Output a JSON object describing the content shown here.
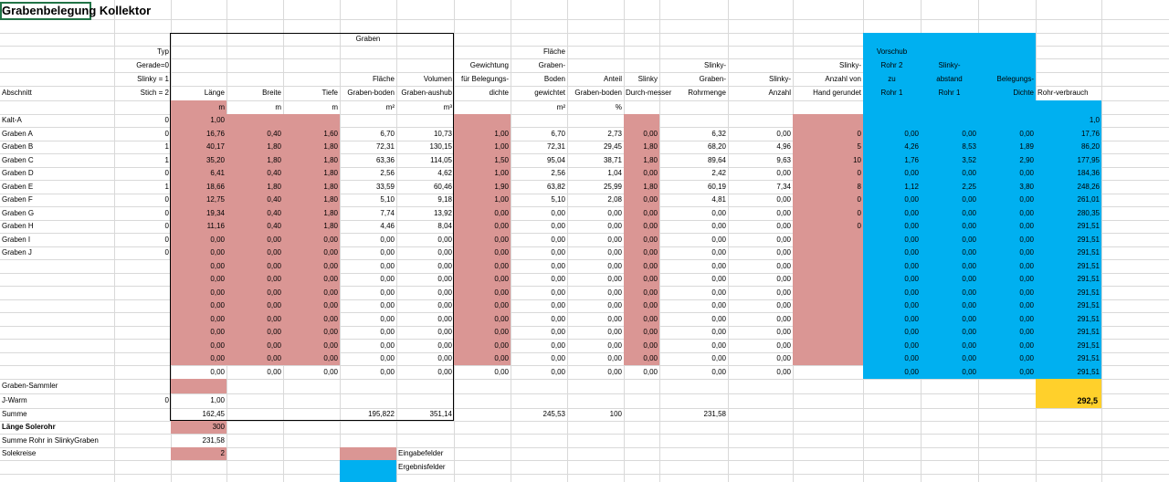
{
  "title": "Grabenbelegung Kollektor",
  "headers": {
    "graben_group": "Graben",
    "abschnitt": "Abschnitt",
    "typ": [
      "Typ",
      "Gerade=0",
      "Slinky = 1",
      "Stich  = 2"
    ],
    "laenge": "Länge",
    "breite": "Breite",
    "tiefe": "Tiefe",
    "flaeche": [
      "Fläche",
      "Graben-boden"
    ],
    "volumen": [
      "Volumen",
      "Graben-aushub"
    ],
    "gewichtung": [
      "Gewichtung",
      "für Belegungs-",
      "dichte"
    ],
    "flaeche_gew": [
      "Fläche",
      "Graben-",
      "Boden",
      "gewichtet"
    ],
    "anteil": [
      "Anteil",
      "Graben-boden"
    ],
    "slinky_d": [
      "Slinky",
      "Durch-messer"
    ],
    "slinky_menge": [
      "Slinky-",
      "Graben-",
      "Rohrmenge"
    ],
    "slinky_anzahl": [
      "Slinky-",
      "Anzahl"
    ],
    "slinky_hand": [
      "Slinky-",
      "Anzahl von",
      "Hand gerundet"
    ],
    "vorschub": [
      "Vorschub",
      "Rohr 2",
      "zu",
      "Rohr 1"
    ],
    "slinky_abstand": [
      "Slinky-",
      "abstand",
      "Rohr 1"
    ],
    "belegungs": [
      "Belegungs-",
      "Dichte"
    ],
    "rohrverbrauch": "Rohr-verbrauch"
  },
  "units": {
    "laenge": "m",
    "breite": "m",
    "tiefe": "m",
    "flaeche": "m²",
    "volumen": "m³",
    "flaeche_gew": "m²",
    "anteil": "%"
  },
  "kalt": {
    "name": "Kalt-A",
    "typ": "0",
    "laenge": "1,00",
    "rohr": "1,0"
  },
  "rows": [
    [
      "Graben A",
      "0",
      "16,76",
      "0,40",
      "1,60",
      "6,70",
      "10,73",
      "1,00",
      "6,70",
      "2,73",
      "0,00",
      "6,32",
      "0,00",
      "0",
      "0,00",
      "0,00",
      "0,00",
      "17,76"
    ],
    [
      "Graben B",
      "1",
      "40,17",
      "1,80",
      "1,80",
      "72,31",
      "130,15",
      "1,00",
      "72,31",
      "29,45",
      "1,80",
      "68,20",
      "4,96",
      "5",
      "4,26",
      "8,53",
      "1,89",
      "86,20"
    ],
    [
      "Graben C",
      "1",
      "35,20",
      "1,80",
      "1,80",
      "63,36",
      "114,05",
      "1,50",
      "95,04",
      "38,71",
      "1,80",
      "89,64",
      "9,63",
      "10",
      "1,76",
      "3,52",
      "2,90",
      "177,95"
    ],
    [
      "Graben D",
      "0",
      "6,41",
      "0,40",
      "1,80",
      "2,56",
      "4,62",
      "1,00",
      "2,56",
      "1,04",
      "0,00",
      "2,42",
      "0,00",
      "0",
      "0,00",
      "0,00",
      "0,00",
      "184,36"
    ],
    [
      "Graben E",
      "1",
      "18,66",
      "1,80",
      "1,80",
      "33,59",
      "60,46",
      "1,90",
      "63,82",
      "25,99",
      "1,80",
      "60,19",
      "7,34",
      "8",
      "1,12",
      "2,25",
      "3,80",
      "248,26"
    ],
    [
      "Graben F",
      "0",
      "12,75",
      "0,40",
      "1,80",
      "5,10",
      "9,18",
      "1,00",
      "5,10",
      "2,08",
      "0,00",
      "4,81",
      "0,00",
      "0",
      "0,00",
      "0,00",
      "0,00",
      "261,01"
    ],
    [
      "Graben G",
      "0",
      "19,34",
      "0,40",
      "1,80",
      "7,74",
      "13,92",
      "0,00",
      "0,00",
      "0,00",
      "0,00",
      "0,00",
      "0,00",
      "0",
      "0,00",
      "0,00",
      "0,00",
      "280,35"
    ],
    [
      "Graben H",
      "0",
      "11,16",
      "0,40",
      "1,80",
      "4,46",
      "8,04",
      "0,00",
      "0,00",
      "0,00",
      "0,00",
      "0,00",
      "0,00",
      "0",
      "0,00",
      "0,00",
      "0,00",
      "291,51"
    ],
    [
      "Graben I",
      "0",
      "0,00",
      "0,00",
      "0,00",
      "0,00",
      "0,00",
      "0,00",
      "0,00",
      "0,00",
      "0,00",
      "0,00",
      "0,00",
      "",
      "0,00",
      "0,00",
      "0,00",
      "291,51"
    ],
    [
      "Graben J",
      "0",
      "0,00",
      "0,00",
      "0,00",
      "0,00",
      "0,00",
      "0,00",
      "0,00",
      "0,00",
      "0,00",
      "0,00",
      "0,00",
      "",
      "0,00",
      "0,00",
      "0,00",
      "291,51"
    ],
    [
      "",
      "",
      "0,00",
      "0,00",
      "0,00",
      "0,00",
      "0,00",
      "0,00",
      "0,00",
      "0,00",
      "0,00",
      "0,00",
      "0,00",
      "",
      "0,00",
      "0,00",
      "0,00",
      "291,51"
    ],
    [
      "",
      "",
      "0,00",
      "0,00",
      "0,00",
      "0,00",
      "0,00",
      "0,00",
      "0,00",
      "0,00",
      "0,00",
      "0,00",
      "0,00",
      "",
      "0,00",
      "0,00",
      "0,00",
      "291,51"
    ],
    [
      "",
      "",
      "0,00",
      "0,00",
      "0,00",
      "0,00",
      "0,00",
      "0,00",
      "0,00",
      "0,00",
      "0,00",
      "0,00",
      "0,00",
      "",
      "0,00",
      "0,00",
      "0,00",
      "291,51"
    ],
    [
      "",
      "",
      "0,00",
      "0,00",
      "0,00",
      "0,00",
      "0,00",
      "0,00",
      "0,00",
      "0,00",
      "0,00",
      "0,00",
      "0,00",
      "",
      "0,00",
      "0,00",
      "0,00",
      "291,51"
    ],
    [
      "",
      "",
      "0,00",
      "0,00",
      "0,00",
      "0,00",
      "0,00",
      "0,00",
      "0,00",
      "0,00",
      "0,00",
      "0,00",
      "0,00",
      "",
      "0,00",
      "0,00",
      "0,00",
      "291,51"
    ],
    [
      "",
      "",
      "0,00",
      "0,00",
      "0,00",
      "0,00",
      "0,00",
      "0,00",
      "0,00",
      "0,00",
      "0,00",
      "0,00",
      "0,00",
      "",
      "0,00",
      "0,00",
      "0,00",
      "291,51"
    ],
    [
      "",
      "",
      "0,00",
      "0,00",
      "0,00",
      "0,00",
      "0,00",
      "0,00",
      "0,00",
      "0,00",
      "0,00",
      "0,00",
      "0,00",
      "",
      "0,00",
      "0,00",
      "0,00",
      "291,51"
    ],
    [
      "",
      "",
      "0,00",
      "0,00",
      "0,00",
      "0,00",
      "0,00",
      "0,00",
      "0,00",
      "0,00",
      "0,00",
      "0,00",
      "0,00",
      "",
      "0,00",
      "0,00",
      "0,00",
      "291,51"
    ],
    [
      "",
      "",
      "0,00",
      "0,00",
      "0,00",
      "0,00",
      "0,00",
      "0,00",
      "0,00",
      "0,00",
      "0,00",
      "0,00",
      "0,00",
      "",
      "0,00",
      "0,00",
      "0,00",
      "291,51"
    ]
  ],
  "graben_sammler": "Graben-Sammler",
  "warm": {
    "name": "J-Warm",
    "typ": "0",
    "laenge": "1,00",
    "rohr": "292,5"
  },
  "summe": {
    "label": "Summe",
    "laenge": "162,45",
    "flaeche": "195,822",
    "volumen": "351,14",
    "flaeche_gew": "245,53",
    "anteil": "100",
    "slinky_menge": "231,58"
  },
  "bottom": {
    "laenge_solerohr_label": "Länge Solerohr",
    "laenge_solerohr_value": "300",
    "summe_rohr_label": "Summe Rohr in SlinkyGraben",
    "summe_rohr_value": "231,58",
    "solekreise_label": "Solekreise",
    "solekreise_value": "2",
    "legend_input": "Eingabefelder",
    "legend_result": "Ergebnisfelder"
  },
  "colors": {
    "input": "#da9694",
    "result": "#00b0f0",
    "total": "#ffd02b",
    "grid": "#d9d9d9"
  }
}
